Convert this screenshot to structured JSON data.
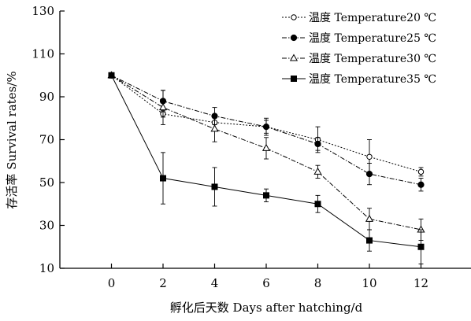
{
  "chart_data": {
    "type": "line",
    "xlabel": "孵化后天数 Days after hatching/d",
    "ylabel": "存活率 Survival rates/%",
    "x": [
      0,
      2,
      4,
      6,
      8,
      10,
      12
    ],
    "xlim": [
      -2,
      14
    ],
    "ylim": [
      10,
      130
    ],
    "xticks": [
      "0",
      "2",
      "4",
      "6",
      "8",
      "10",
      "12"
    ],
    "yticks": [
      "10",
      "30",
      "50",
      "70",
      "90",
      "110",
      "130"
    ],
    "grid": false,
    "legend_position": "top-right",
    "series": [
      {
        "name": "温度 Temperature20 ℃",
        "marker": "open-circle",
        "line": "dotted",
        "values": [
          100,
          82,
          78,
          76,
          70,
          62,
          55
        ],
        "error": [
          0,
          1.5,
          3,
          3,
          6,
          8,
          2
        ]
      },
      {
        "name": "温度 Temperature25 ℃",
        "marker": "filled-circle",
        "line": "dash-dot",
        "values": [
          100,
          88,
          81,
          76,
          68,
          54,
          49
        ],
        "error": [
          0,
          5,
          4,
          4,
          3,
          5,
          3
        ]
      },
      {
        "name": "温度 Temperature30 ℃",
        "marker": "open-triangle",
        "line": "dash-dot",
        "values": [
          100,
          85,
          75,
          66,
          55,
          33,
          28
        ],
        "error": [
          0,
          8,
          6,
          5,
          3,
          5,
          5
        ]
      },
      {
        "name": "温度 Temperature35 ℃",
        "marker": "filled-square",
        "line": "solid",
        "values": [
          100,
          52,
          48,
          44,
          40,
          23,
          20
        ],
        "error": [
          0,
          12,
          9,
          3,
          4,
          5,
          8
        ]
      }
    ]
  }
}
